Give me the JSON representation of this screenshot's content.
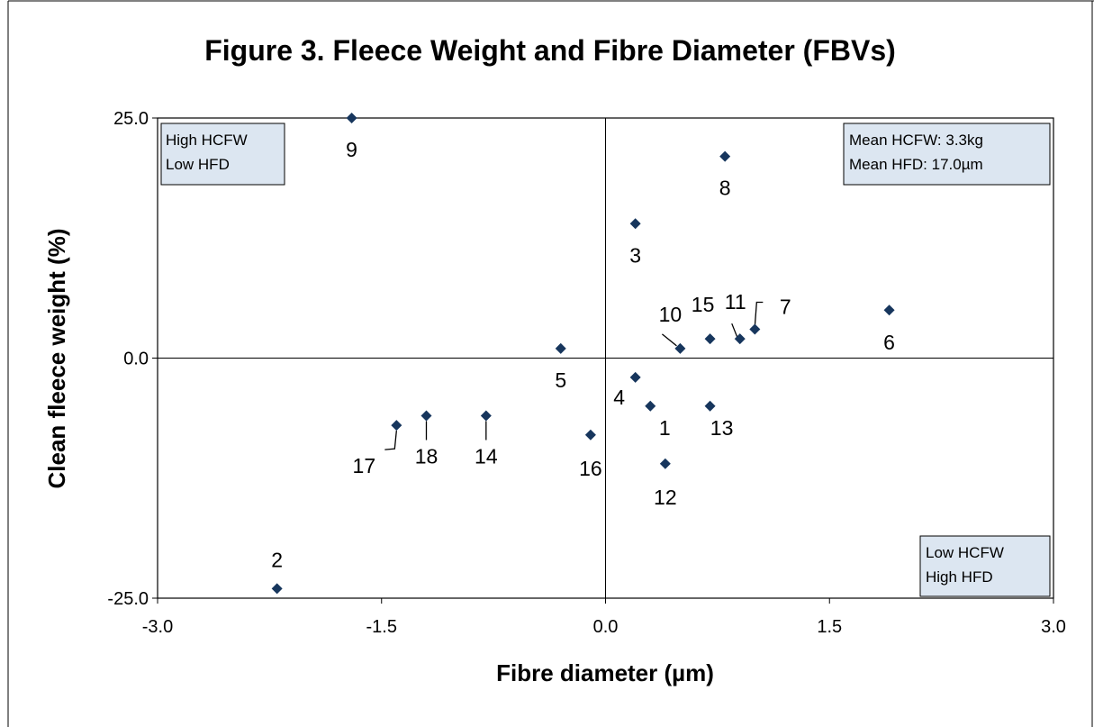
{
  "chart_data": {
    "type": "scatter",
    "title": "Figure 3.  Fleece Weight and Fibre Diameter (FBVs)",
    "xlabel": "Fibre diameter (µm)",
    "ylabel": "Clean fleece weight (%)",
    "xlim": [
      -3.0,
      3.0
    ],
    "ylim": [
      -25.0,
      25.0
    ],
    "x_ticks": [
      "-3.0",
      "-1.5",
      "0.0",
      "1.5",
      "3.0"
    ],
    "y_ticks": [
      "25.0",
      "0.0",
      "-25.0"
    ],
    "x_tick_values": [
      -3.0,
      -1.5,
      0.0,
      1.5,
      3.0
    ],
    "y_tick_values": [
      25.0,
      0.0,
      -25.0
    ],
    "grid": false,
    "quadrant_lines": {
      "x": 0.0,
      "y": 0.0
    },
    "marker_color": "#17365d",
    "points": [
      {
        "label": "1",
        "x": 0.3,
        "y": -5
      },
      {
        "label": "2",
        "x": -2.2,
        "y": -24
      },
      {
        "label": "3",
        "x": 0.2,
        "y": 14
      },
      {
        "label": "4",
        "x": 0.2,
        "y": -2
      },
      {
        "label": "5",
        "x": -0.3,
        "y": 1
      },
      {
        "label": "6",
        "x": 1.9,
        "y": 5
      },
      {
        "label": "7",
        "x": 1.0,
        "y": 3
      },
      {
        "label": "8",
        "x": 0.8,
        "y": 21
      },
      {
        "label": "9",
        "x": -1.7,
        "y": 25
      },
      {
        "label": "10",
        "x": 0.5,
        "y": 1
      },
      {
        "label": "11",
        "x": 0.9,
        "y": 2
      },
      {
        "label": "12",
        "x": 0.4,
        "y": -11
      },
      {
        "label": "13",
        "x": 0.7,
        "y": -5
      },
      {
        "label": "14",
        "x": -0.8,
        "y": -6
      },
      {
        "label": "15",
        "x": 0.7,
        "y": 2
      },
      {
        "label": "16",
        "x": -0.1,
        "y": -8
      },
      {
        "label": "17",
        "x": -1.4,
        "y": -7
      },
      {
        "label": "18",
        "x": -1.2,
        "y": -6
      }
    ],
    "annotations": {
      "top_left": [
        "High HCFW",
        "Low HFD"
      ],
      "top_right": [
        "Mean HCFW: 3.3kg",
        "Mean HFD: 17.0µm"
      ],
      "bottom_right": [
        "Low HCFW",
        "High HFD"
      ]
    },
    "annotation_box_color": "#dce6f1"
  }
}
